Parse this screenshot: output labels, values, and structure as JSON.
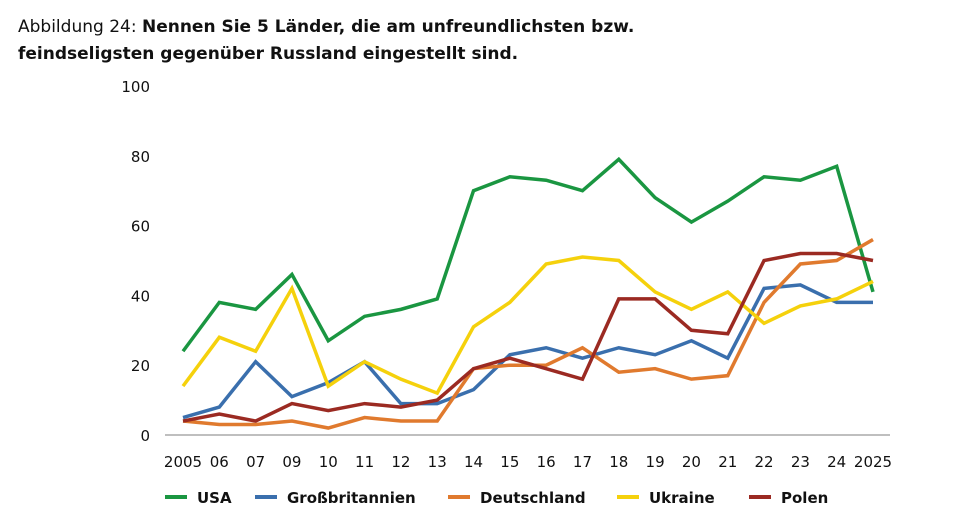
{
  "title_prefix": "Abbildung 24:",
  "title": "Nennen Sie 5 Länder, die am unfreundlichsten bzw. feindseligsten gegenüber Russland eingestellt sind.",
  "chart_data": {
    "type": "line",
    "title": "Abbildung 24: Nennen Sie 5 Länder, die am unfreundlichsten bzw. feindseligsten gegenüber Russland eingestellt sind.",
    "categories": [
      "2005",
      "06",
      "07",
      "09",
      "10",
      "11",
      "12",
      "13",
      "14",
      "15",
      "16",
      "17",
      "18",
      "19",
      "20",
      "21",
      "22",
      "23",
      "24",
      "2025"
    ],
    "ylim": [
      0,
      100
    ],
    "yticks": [
      0,
      20,
      40,
      60,
      80,
      100
    ],
    "grid": false,
    "legend": "bottom",
    "series": [
      {
        "name": "USA",
        "color": "#1a9641",
        "values": [
          24,
          38,
          36,
          46,
          27,
          34,
          36,
          39,
          70,
          74,
          73,
          70,
          79,
          68,
          61,
          67,
          74,
          73,
          77,
          41
        ]
      },
      {
        "name": "Großbritannien",
        "color": "#3a6fad",
        "values": [
          5,
          8,
          21,
          11,
          15,
          21,
          9,
          9,
          13,
          23,
          25,
          22,
          25,
          23,
          27,
          22,
          42,
          43,
          38,
          38
        ]
      },
      {
        "name": "Deutschland",
        "color": "#e07a2e",
        "values": [
          4,
          3,
          3,
          4,
          2,
          5,
          4,
          4,
          19,
          20,
          20,
          25,
          18,
          19,
          16,
          17,
          38,
          49,
          50,
          56
        ]
      },
      {
        "name": "Ukraine",
        "color": "#f5d10c",
        "values": [
          14,
          28,
          24,
          42,
          14,
          21,
          16,
          12,
          31,
          38,
          49,
          51,
          50,
          41,
          36,
          41,
          32,
          37,
          39,
          44
        ]
      },
      {
        "name": "Polen",
        "color": "#9b2a22",
        "values": [
          4,
          6,
          4,
          9,
          7,
          9,
          8,
          10,
          19,
          22,
          19,
          16,
          39,
          39,
          30,
          29,
          50,
          52,
          52,
          50
        ]
      }
    ]
  }
}
